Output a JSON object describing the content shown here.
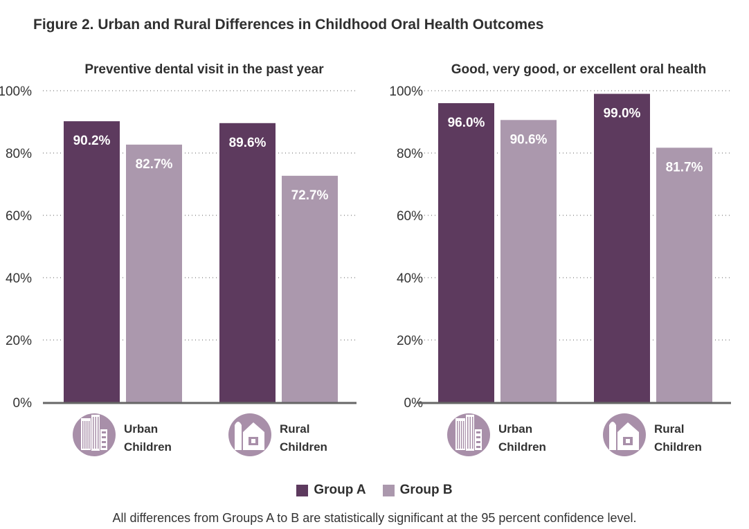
{
  "figure_title": "Figure 2. Urban and Rural Differences in Childhood Oral Health Outcomes",
  "colors": {
    "group_a": "#5d3a5e",
    "group_b": "#ab98ad",
    "icon": "#a88fa9",
    "axis": "#666666"
  },
  "legend": [
    {
      "label": "Group A",
      "color": "#5d3a5e"
    },
    {
      "label": "Group B",
      "color": "#ab98ad"
    }
  ],
  "footnote": "All differences from Groups A to B are statistically significant at the 95 percent confidence level.",
  "chart_data": [
    {
      "type": "bar",
      "title": "Preventive dental visit in the past year",
      "categories": [
        "Urban Children",
        "Rural Children"
      ],
      "category_icons": [
        "city-buildings-icon",
        "farm-barn-icon"
      ],
      "series": [
        {
          "name": "Group A",
          "values": [
            90.2,
            89.6
          ],
          "labels": [
            "90.2%",
            "89.6%"
          ]
        },
        {
          "name": "Group B",
          "values": [
            82.7,
            72.7
          ],
          "labels": [
            "82.7%",
            "72.7%"
          ]
        }
      ],
      "yticks": [
        "0%",
        "20%",
        "40%",
        "60%",
        "80%",
        "100%"
      ],
      "ylim": [
        0,
        100
      ],
      "grid": true,
      "legend": "bottom"
    },
    {
      "type": "bar",
      "title": "Good, very good, or excellent oral health",
      "categories": [
        "Urban Children",
        "Rural Children"
      ],
      "category_icons": [
        "city-buildings-icon",
        "farm-barn-icon"
      ],
      "series": [
        {
          "name": "Group A",
          "values": [
            96.0,
            99.0
          ],
          "labels": [
            "96.0%",
            "99.0%"
          ]
        },
        {
          "name": "Group B",
          "values": [
            90.6,
            81.7
          ],
          "labels": [
            "90.6%",
            "81.7%"
          ]
        }
      ],
      "yticks": [
        "0%",
        "20%",
        "40%",
        "60%",
        "80%",
        "100%"
      ],
      "ylim": [
        0,
        100
      ],
      "grid": true,
      "legend": "bottom"
    }
  ]
}
